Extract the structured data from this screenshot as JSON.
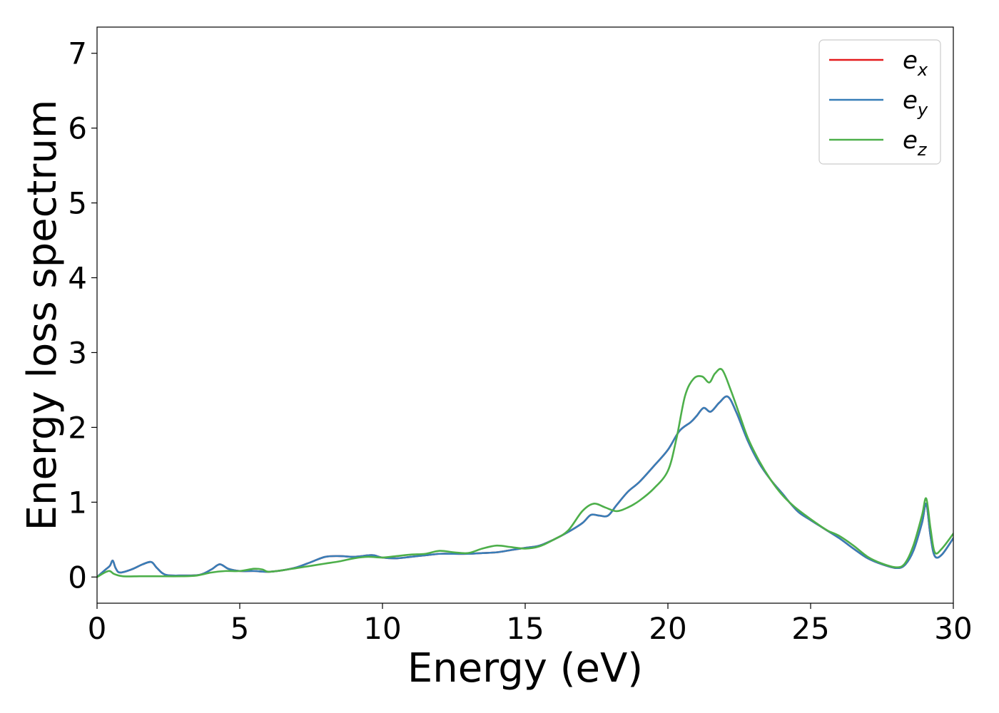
{
  "chart_data": {
    "type": "line",
    "title": "",
    "xlabel": "Energy (eV)",
    "ylabel": "Energy loss spectrum",
    "xlim": [
      0,
      30
    ],
    "ylim": [
      -0.35,
      7.35
    ],
    "xticks": [
      0,
      5,
      10,
      15,
      20,
      25,
      30
    ],
    "xtick_labels": [
      "0",
      "5",
      "10",
      "15",
      "20",
      "25",
      "30"
    ],
    "yticks": [
      0,
      1,
      2,
      3,
      4,
      5,
      6,
      7
    ],
    "ytick_labels": [
      "0",
      "1",
      "2",
      "3",
      "4",
      "5",
      "6",
      "7"
    ],
    "grid": false,
    "legend_position": "top-right",
    "series": [
      {
        "name": "e",
        "subscript": "x",
        "color": "#e41a1c",
        "x": [
          0,
          0.3,
          0.45,
          0.55,
          0.65,
          0.8,
          1.2,
          1.6,
          1.9,
          2.1,
          2.4,
          3.0,
          3.6,
          4.0,
          4.3,
          4.6,
          5.0,
          5.5,
          6.0,
          6.5,
          7.0,
          7.5,
          8.0,
          8.5,
          9.0,
          9.5,
          9.7,
          10.0,
          10.5,
          11.0,
          11.5,
          12.0,
          12.5,
          13.0,
          13.5,
          14.0,
          14.5,
          15.0,
          15.5,
          16.0,
          16.5,
          17.0,
          17.3,
          17.6,
          17.9,
          18.2,
          18.6,
          19.0,
          19.5,
          20.0,
          20.4,
          20.8,
          21.0,
          21.25,
          21.5,
          21.8,
          22.1,
          22.4,
          22.8,
          23.2,
          23.6,
          24.0,
          24.3,
          24.6,
          25.0,
          25.5,
          26.0,
          26.5,
          27.0,
          27.5,
          28.0,
          28.3,
          28.6,
          28.9,
          29.05,
          29.2,
          29.35,
          29.6,
          30.0
        ],
        "y": [
          0.0,
          0.1,
          0.15,
          0.22,
          0.12,
          0.06,
          0.1,
          0.17,
          0.2,
          0.12,
          0.03,
          0.02,
          0.03,
          0.1,
          0.17,
          0.11,
          0.08,
          0.08,
          0.07,
          0.09,
          0.13,
          0.2,
          0.27,
          0.28,
          0.27,
          0.29,
          0.29,
          0.26,
          0.25,
          0.27,
          0.29,
          0.31,
          0.31,
          0.31,
          0.32,
          0.33,
          0.36,
          0.39,
          0.42,
          0.5,
          0.6,
          0.72,
          0.83,
          0.82,
          0.82,
          0.96,
          1.14,
          1.27,
          1.48,
          1.7,
          1.95,
          2.07,
          2.15,
          2.26,
          2.21,
          2.33,
          2.41,
          2.2,
          1.82,
          1.52,
          1.3,
          1.12,
          0.98,
          0.86,
          0.76,
          0.64,
          0.52,
          0.38,
          0.25,
          0.17,
          0.12,
          0.16,
          0.35,
          0.72,
          0.98,
          0.55,
          0.28,
          0.3,
          0.52
        ]
      },
      {
        "name": "e",
        "subscript": "y",
        "color": "#377eb8",
        "x": [
          0,
          0.3,
          0.45,
          0.55,
          0.65,
          0.8,
          1.2,
          1.6,
          1.9,
          2.1,
          2.4,
          3.0,
          3.6,
          4.0,
          4.3,
          4.6,
          5.0,
          5.5,
          6.0,
          6.5,
          7.0,
          7.5,
          8.0,
          8.5,
          9.0,
          9.5,
          9.7,
          10.0,
          10.5,
          11.0,
          11.5,
          12.0,
          12.5,
          13.0,
          13.5,
          14.0,
          14.5,
          15.0,
          15.5,
          16.0,
          16.5,
          17.0,
          17.3,
          17.6,
          17.9,
          18.2,
          18.6,
          19.0,
          19.5,
          20.0,
          20.4,
          20.8,
          21.0,
          21.25,
          21.5,
          21.8,
          22.1,
          22.4,
          22.8,
          23.2,
          23.6,
          24.0,
          24.3,
          24.6,
          25.0,
          25.5,
          26.0,
          26.5,
          27.0,
          27.5,
          28.0,
          28.3,
          28.6,
          28.9,
          29.05,
          29.2,
          29.35,
          29.6,
          30.0
        ],
        "y": [
          0.0,
          0.1,
          0.15,
          0.22,
          0.12,
          0.06,
          0.1,
          0.17,
          0.2,
          0.12,
          0.03,
          0.02,
          0.03,
          0.1,
          0.17,
          0.11,
          0.08,
          0.08,
          0.07,
          0.09,
          0.13,
          0.2,
          0.27,
          0.28,
          0.27,
          0.29,
          0.29,
          0.26,
          0.25,
          0.27,
          0.29,
          0.31,
          0.31,
          0.31,
          0.32,
          0.33,
          0.36,
          0.39,
          0.42,
          0.5,
          0.6,
          0.72,
          0.83,
          0.82,
          0.82,
          0.96,
          1.14,
          1.27,
          1.48,
          1.7,
          1.95,
          2.07,
          2.15,
          2.26,
          2.21,
          2.33,
          2.41,
          2.2,
          1.82,
          1.52,
          1.3,
          1.12,
          0.98,
          0.86,
          0.76,
          0.64,
          0.52,
          0.38,
          0.25,
          0.17,
          0.12,
          0.16,
          0.35,
          0.72,
          0.98,
          0.55,
          0.28,
          0.3,
          0.52
        ]
      },
      {
        "name": "e",
        "subscript": "z",
        "color": "#4daf4a",
        "x": [
          0,
          0.4,
          0.6,
          0.9,
          1.5,
          2.0,
          3.0,
          3.5,
          4.0,
          4.5,
          5.0,
          5.5,
          5.8,
          6.0,
          6.5,
          7.0,
          7.5,
          8.0,
          8.5,
          9.0,
          9.5,
          10.0,
          10.5,
          11.0,
          11.5,
          12.0,
          12.5,
          13.0,
          13.5,
          14.0,
          14.5,
          15.0,
          15.5,
          16.0,
          16.5,
          17.0,
          17.4,
          17.8,
          18.2,
          18.6,
          19.0,
          19.5,
          20.0,
          20.3,
          20.6,
          20.9,
          21.2,
          21.45,
          21.65,
          21.9,
          22.2,
          22.5,
          22.8,
          23.2,
          23.6,
          24.0,
          24.4,
          24.8,
          25.2,
          25.6,
          26.0,
          26.5,
          27.0,
          27.5,
          28.0,
          28.3,
          28.6,
          28.9,
          29.05,
          29.2,
          29.35,
          29.6,
          30.0
        ],
        "y": [
          0.0,
          0.08,
          0.04,
          0.01,
          0.01,
          0.01,
          0.01,
          0.02,
          0.06,
          0.08,
          0.08,
          0.11,
          0.1,
          0.07,
          0.09,
          0.12,
          0.15,
          0.18,
          0.21,
          0.25,
          0.27,
          0.26,
          0.28,
          0.3,
          0.31,
          0.35,
          0.33,
          0.32,
          0.38,
          0.42,
          0.4,
          0.38,
          0.41,
          0.5,
          0.62,
          0.88,
          0.98,
          0.93,
          0.88,
          0.93,
          1.02,
          1.18,
          1.42,
          1.85,
          2.42,
          2.65,
          2.68,
          2.6,
          2.72,
          2.77,
          2.5,
          2.18,
          1.86,
          1.55,
          1.3,
          1.1,
          0.95,
          0.83,
          0.72,
          0.62,
          0.55,
          0.42,
          0.27,
          0.18,
          0.13,
          0.18,
          0.42,
          0.82,
          1.05,
          0.65,
          0.33,
          0.38,
          0.58
        ]
      }
    ]
  }
}
